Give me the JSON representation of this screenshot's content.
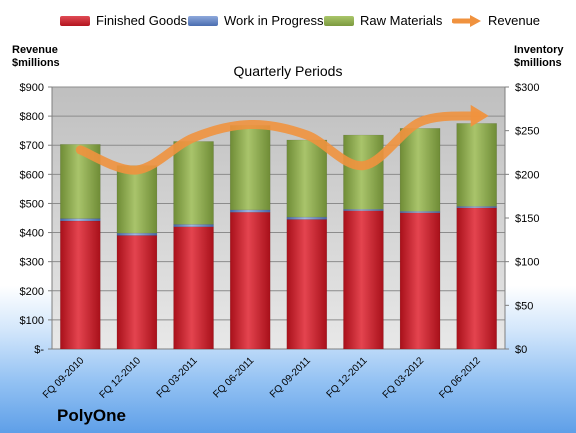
{
  "chart_data": {
    "type": "bar",
    "title": "Quarterly Periods",
    "company": "PolyOne",
    "categories": [
      "FQ 09-2010",
      "FQ 12-2010",
      "FQ 03-2011",
      "FQ 06-2011",
      "FQ 09-2011",
      "FQ 12-2011",
      "FQ 03-2012",
      "FQ 06-2012"
    ],
    "series": [
      {
        "name": "Finished Goods",
        "color": "#c8212c",
        "values": [
          440,
          390,
          420,
          470,
          445,
          475,
          468,
          485
        ]
      },
      {
        "name": "Work in Progress",
        "color": "#5b7fbf",
        "values": [
          8,
          8,
          8,
          8,
          8,
          5,
          5,
          5
        ]
      },
      {
        "name": "Raw Materials",
        "color": "#8fab4f",
        "values": [
          255,
          232,
          285,
          290,
          265,
          255,
          285,
          285
        ]
      }
    ],
    "line_series": {
      "name": "Revenue",
      "color": "#f0923e",
      "values": [
        228,
        205,
        242,
        257,
        245,
        210,
        260,
        267
      ]
    },
    "ylabel_left": "Revenue\n$millions",
    "ylabel_right": "Inventory\n$millions",
    "left_axis": {
      "ylim": [
        0,
        900
      ],
      "ticks": [
        "$-",
        "$100",
        "$200",
        "$300",
        "$400",
        "$500",
        "$600",
        "$700",
        "$800",
        "$900"
      ]
    },
    "right_axis": {
      "ylim": [
        0,
        300
      ],
      "ticks": [
        "$0",
        "$50",
        "$100",
        "$150",
        "$200",
        "$250",
        "$300"
      ]
    }
  },
  "legend": {
    "finished_goods": "Finished Goods",
    "work_in_progress": "Work in Progress",
    "raw_materials": "Raw Materials",
    "revenue": "Revenue"
  },
  "labels": {
    "left_axis_line1": "Revenue",
    "left_axis_line2": "$millions",
    "right_axis_line1": "Inventory",
    "right_axis_line2": "$millions",
    "title": "Quarterly Periods",
    "company": "PolyOne"
  }
}
